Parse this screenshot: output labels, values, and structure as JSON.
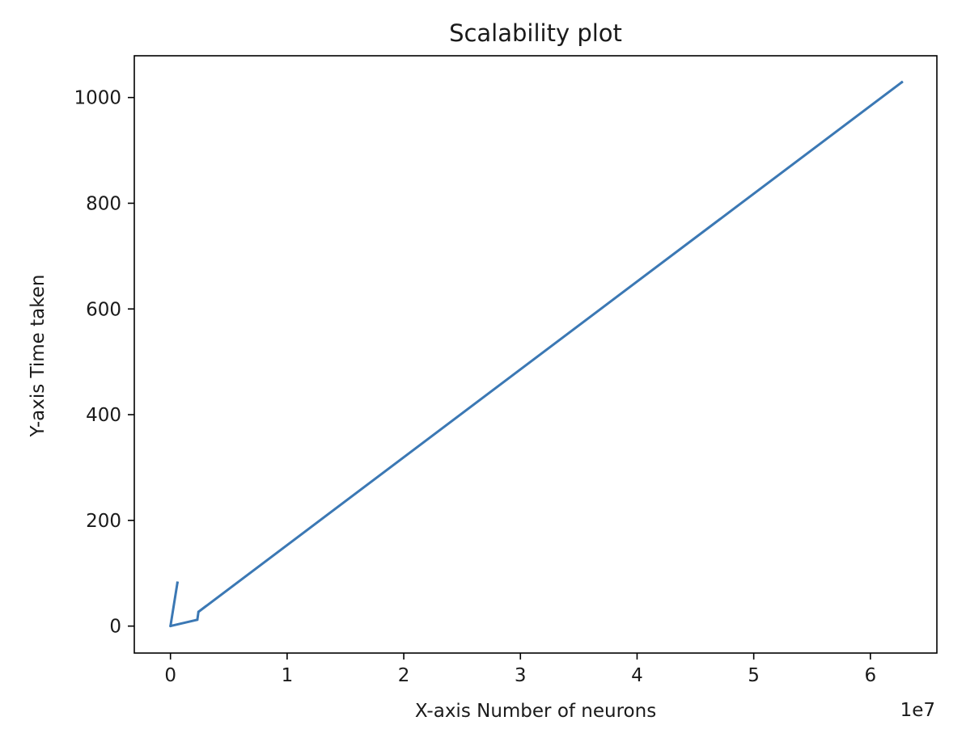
{
  "chart_data": {
    "type": "line",
    "title": "Scalability plot",
    "xlabel": "X-axis Number of neurons",
    "ylabel": "Y-axis Time taken",
    "x_offset_label": "1e7",
    "x_scale": 10000000,
    "xlim": [
      -3100000,
      65700000
    ],
    "ylim": [
      -51,
      1079
    ],
    "xticks": [
      0,
      10000000,
      20000000,
      30000000,
      40000000,
      50000000,
      60000000
    ],
    "xtick_labels": [
      "0",
      "1",
      "2",
      "3",
      "4",
      "5",
      "6"
    ],
    "yticks": [
      0,
      200,
      400,
      600,
      800,
      1000
    ],
    "ytick_labels": [
      "0",
      "200",
      "400",
      "600",
      "800",
      "1000"
    ],
    "grid": false,
    "legend": "none",
    "series": [
      {
        "color": "#3b78b4",
        "x": [
          600000,
          0,
          2300000,
          2400000,
          62700000
        ],
        "y": [
          82,
          0,
          12,
          27,
          1029
        ]
      }
    ]
  }
}
